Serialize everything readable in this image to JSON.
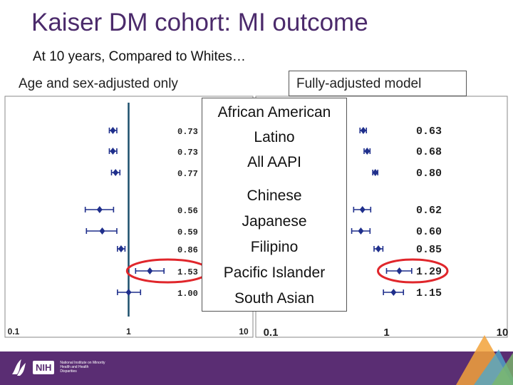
{
  "title": "Kaiser DM cohort: MI outcome",
  "subtitle": "At 10 years, Compared to Whites…",
  "panels": {
    "left_label": "Age and sex-adjusted only",
    "right_label": "Fully-adjusted model"
  },
  "legend": {
    "items": [
      "African American",
      "Latino",
      "All AAPI",
      "Chinese",
      "Japanese",
      "Filipino",
      "Pacific Islander",
      "South Asian"
    ]
  },
  "footer": {
    "org_abbrev": "NIH",
    "org_name": "National Institute on Minority Health and Health Disparities",
    "hhs_logo": "hhs-eagle-logo"
  },
  "colors": {
    "title": "#4b2a6b",
    "footer": "#5a2d73",
    "marker": "#1f2f8c",
    "reference_line": "#1b4f6b",
    "highlight": "#e0262b"
  },
  "chart_data": [
    {
      "type": "forest",
      "panel": "Age and sex-adjusted only",
      "categories": [
        "African American",
        "Latino",
        "All AAPI",
        "Chinese",
        "Japanese",
        "Filipino",
        "Pacific Islander",
        "South Asian"
      ],
      "estimates": [
        0.73,
        0.73,
        0.77,
        0.56,
        0.59,
        0.86,
        1.53,
        1.0
      ],
      "ci_low": [
        0.68,
        0.68,
        0.71,
        0.42,
        0.43,
        0.8,
        1.15,
        0.8
      ],
      "ci_high": [
        0.79,
        0.79,
        0.84,
        0.74,
        0.79,
        0.93,
        2.03,
        1.27
      ],
      "labels": [
        "0.73",
        "0.73",
        "0.77",
        "0.56",
        "0.59",
        "0.86",
        "1.53",
        "1.00"
      ],
      "x_scale": "log",
      "xlim": [
        0.1,
        10
      ],
      "x_ticks": [
        "0.1",
        "1",
        "10"
      ],
      "reference_line": 1,
      "highlighted": "Pacific Islander"
    },
    {
      "type": "forest",
      "panel": "Fully-adjusted model",
      "categories": [
        "African American",
        "Latino",
        "All AAPI",
        "Chinese",
        "Japanese",
        "Filipino",
        "Pacific Islander",
        "South Asian"
      ],
      "estimates": [
        0.63,
        0.68,
        0.8,
        0.62,
        0.6,
        0.85,
        1.29,
        1.15
      ],
      "ci_low": [
        0.59,
        0.64,
        0.76,
        0.52,
        0.5,
        0.78,
        1.0,
        0.94
      ],
      "ci_high": [
        0.67,
        0.72,
        0.84,
        0.73,
        0.72,
        0.93,
        1.65,
        1.4
      ],
      "labels": [
        "0.63",
        "0.68",
        "0.80",
        "0.62",
        "0.60",
        "0.85",
        "1.29",
        "1.15"
      ],
      "x_scale": "log",
      "xlim": [
        0.1,
        10
      ],
      "x_ticks": [
        "0.1",
        "1",
        "10"
      ],
      "highlighted": "Pacific Islander"
    }
  ]
}
